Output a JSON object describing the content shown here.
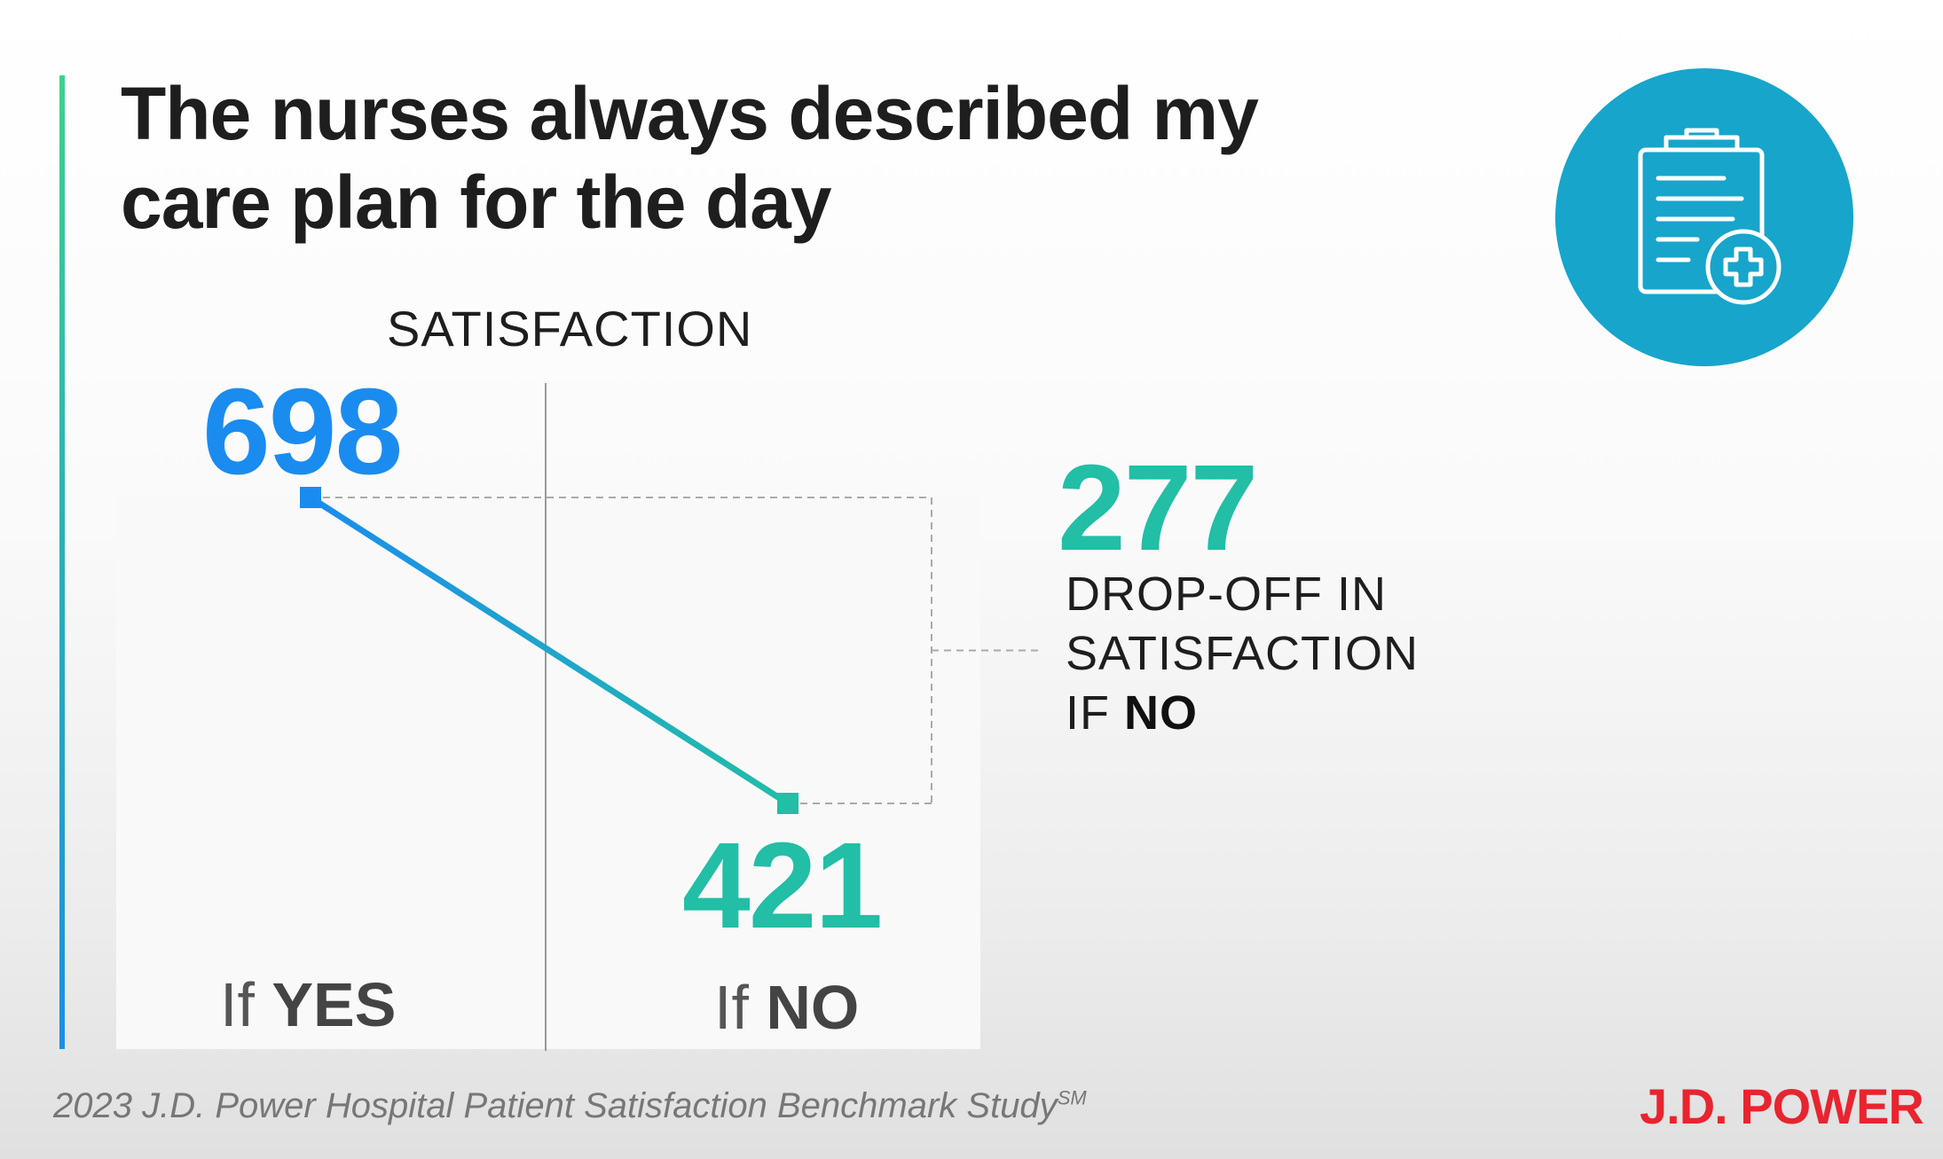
{
  "title": "The nurses always described my care plan for the day",
  "icon": "clipboard-medical-icon",
  "chart_data": {
    "type": "line",
    "ylabel": "SATISFACTION",
    "categories": [
      "If YES",
      "If NO"
    ],
    "values": [
      698,
      421
    ],
    "category_labels": [
      {
        "prefix": "If ",
        "bold": "YES"
      },
      {
        "prefix": "If ",
        "bold": "NO"
      }
    ],
    "annotation": {
      "value": "277",
      "line1": "DROP-OFF IN",
      "line2": "SATISFACTION",
      "line3_prefix": "IF ",
      "line3_bold": "NO"
    },
    "colors": {
      "yes": "#1a8cf0",
      "no": "#22bea6"
    }
  },
  "labels": {
    "yes_value": "698",
    "no_value": "421"
  },
  "footer": {
    "source": "2023 J.D. Power Hospital Patient Satisfaction Benchmark Study",
    "mark": "SM"
  },
  "brand": "J.D. POWER"
}
